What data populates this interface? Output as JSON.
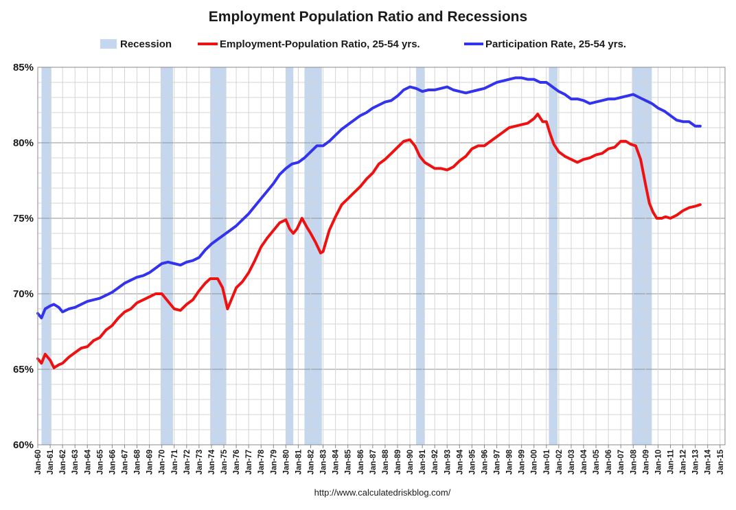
{
  "chart_data": {
    "type": "line",
    "title": "Employment Population Ratio and Recessions",
    "source": "http://www.calculatedriskblog.com/",
    "ylim": [
      60,
      85
    ],
    "yticks": [
      60,
      65,
      70,
      75,
      80,
      85
    ],
    "ytick_labels": [
      "60%",
      "65%",
      "70%",
      "75%",
      "80%",
      "85%"
    ],
    "xlim": [
      1960.0,
      2015.4
    ],
    "xtick_labels": [
      "Jan-60",
      "Jan-61",
      "Jan-62",
      "Jan-63",
      "Jan-64",
      "Jan-65",
      "Jan-66",
      "Jan-67",
      "Jan-68",
      "Jan-69",
      "Jan-70",
      "Jan-71",
      "Jan-72",
      "Jan-73",
      "Jan-74",
      "Jan-75",
      "Jan-76",
      "Jan-77",
      "Jan-78",
      "Jan-79",
      "Jan-80",
      "Jan-81",
      "Jan-82",
      "Jan-83",
      "Jan-84",
      "Jan-85",
      "Jan-86",
      "Jan-87",
      "Jan-88",
      "Jan-89",
      "Jan-90",
      "Jan-91",
      "Jan-92",
      "Jan-93",
      "Jan-94",
      "Jan-95",
      "Jan-96",
      "Jan-97",
      "Jan-98",
      "Jan-99",
      "Jan-00",
      "Jan-01",
      "Jan-02",
      "Jan-03",
      "Jan-04",
      "Jan-05",
      "Jan-06",
      "Jan-07",
      "Jan-08",
      "Jan-09",
      "Jan-10",
      "Jan-11",
      "Jan-12",
      "Jan-13",
      "Jan-14",
      "Jan-15"
    ],
    "grid": true,
    "legend_position": "top",
    "legend": [
      {
        "label": "Recession",
        "color": "#c5d7ef",
        "kind": "box"
      },
      {
        "label": "Employment-Population Ratio, 25-54 yrs.",
        "color": "#ee1111",
        "kind": "line"
      },
      {
        "label": "Participation Rate, 25-54 yrs.",
        "color": "#3333ee",
        "kind": "line"
      }
    ],
    "recessions": [
      [
        1960.3,
        1961.1
      ],
      [
        1969.9,
        1970.9
      ],
      [
        1973.9,
        1975.2
      ],
      [
        1980.0,
        1980.6
      ],
      [
        1981.5,
        1982.9
      ],
      [
        1990.5,
        1991.2
      ],
      [
        2001.2,
        2001.9
      ],
      [
        2007.9,
        2009.5
      ]
    ],
    "series": [
      {
        "name": "Employment-Population Ratio, 25-54 yrs.",
        "color": "#ee1111",
        "x": [
          1960.0,
          1960.3,
          1960.6,
          1961.0,
          1961.3,
          1961.7,
          1962.0,
          1962.5,
          1963.0,
          1963.5,
          1964.0,
          1964.5,
          1965.0,
          1965.5,
          1966.0,
          1966.5,
          1967.0,
          1967.5,
          1968.0,
          1968.5,
          1969.0,
          1969.5,
          1970.0,
          1970.5,
          1971.0,
          1971.5,
          1972.0,
          1972.5,
          1973.0,
          1973.5,
          1973.9,
          1974.5,
          1974.9,
          1975.3,
          1975.7,
          1976.0,
          1976.5,
          1977.0,
          1977.5,
          1978.0,
          1978.5,
          1979.0,
          1979.5,
          1980.0,
          1980.3,
          1980.6,
          1980.9,
          1981.3,
          1981.7,
          1982.0,
          1982.4,
          1982.8,
          1983.0,
          1983.5,
          1984.0,
          1984.5,
          1985.0,
          1985.5,
          1986.0,
          1986.5,
          1987.0,
          1987.5,
          1988.0,
          1988.5,
          1989.0,
          1989.5,
          1990.0,
          1990.4,
          1990.8,
          1991.2,
          1991.6,
          1992.0,
          1992.5,
          1993.0,
          1993.5,
          1994.0,
          1994.5,
          1995.0,
          1995.5,
          1996.0,
          1996.5,
          1997.0,
          1997.5,
          1998.0,
          1998.5,
          1999.0,
          1999.5,
          2000.0,
          2000.3,
          2000.7,
          2001.0,
          2001.3,
          2001.6,
          2002.0,
          2002.5,
          2003.0,
          2003.5,
          2004.0,
          2004.5,
          2005.0,
          2005.5,
          2006.0,
          2006.5,
          2007.0,
          2007.4,
          2007.8,
          2008.2,
          2008.6,
          2009.0,
          2009.3,
          2009.6,
          2009.9,
          2010.3,
          2010.6,
          2011.0,
          2011.5,
          2012.0,
          2012.5,
          2013.0,
          2013.4
        ],
        "y": [
          65.7,
          65.4,
          66.0,
          65.6,
          65.1,
          65.3,
          65.4,
          65.8,
          66.1,
          66.4,
          66.5,
          66.9,
          67.1,
          67.6,
          67.9,
          68.4,
          68.8,
          69.0,
          69.4,
          69.6,
          69.8,
          70.0,
          70.0,
          69.5,
          69.0,
          68.9,
          69.3,
          69.6,
          70.2,
          70.7,
          71.0,
          71.0,
          70.4,
          69.0,
          69.8,
          70.4,
          70.8,
          71.4,
          72.2,
          73.1,
          73.7,
          74.2,
          74.7,
          74.9,
          74.3,
          74.0,
          74.3,
          75.0,
          74.4,
          74.0,
          73.4,
          72.7,
          72.8,
          74.2,
          75.1,
          75.9,
          76.3,
          76.7,
          77.1,
          77.6,
          78.0,
          78.6,
          78.9,
          79.3,
          79.7,
          80.1,
          80.2,
          79.8,
          79.1,
          78.7,
          78.5,
          78.3,
          78.3,
          78.2,
          78.4,
          78.8,
          79.1,
          79.6,
          79.8,
          79.8,
          80.1,
          80.4,
          80.7,
          81.0,
          81.1,
          81.2,
          81.3,
          81.6,
          81.9,
          81.4,
          81.4,
          80.6,
          79.9,
          79.4,
          79.1,
          78.9,
          78.7,
          78.9,
          79.0,
          79.2,
          79.3,
          79.6,
          79.7,
          80.1,
          80.1,
          79.9,
          79.8,
          78.9,
          77.2,
          76.0,
          75.4,
          75.0,
          75.0,
          75.1,
          75.0,
          75.2,
          75.5,
          75.7,
          75.8,
          75.9
        ]
      },
      {
        "name": "Participation Rate, 25-54 yrs.",
        "color": "#3333ee",
        "x": [
          1960.0,
          1960.3,
          1960.6,
          1961.0,
          1961.3,
          1961.7,
          1962.0,
          1962.5,
          1963.0,
          1963.5,
          1964.0,
          1964.5,
          1965.0,
          1965.5,
          1966.0,
          1966.5,
          1967.0,
          1967.5,
          1968.0,
          1968.5,
          1969.0,
          1969.5,
          1970.0,
          1970.5,
          1971.0,
          1971.5,
          1972.0,
          1972.5,
          1973.0,
          1973.5,
          1974.0,
          1974.5,
          1975.0,
          1975.5,
          1976.0,
          1976.5,
          1977.0,
          1977.5,
          1978.0,
          1978.5,
          1979.0,
          1979.5,
          1980.0,
          1980.5,
          1981.0,
          1981.5,
          1982.0,
          1982.5,
          1983.0,
          1983.5,
          1984.0,
          1984.5,
          1985.0,
          1985.5,
          1986.0,
          1986.5,
          1987.0,
          1987.5,
          1988.0,
          1988.5,
          1989.0,
          1989.5,
          1990.0,
          1990.5,
          1991.0,
          1991.5,
          1992.0,
          1992.5,
          1993.0,
          1993.5,
          1994.0,
          1994.5,
          1995.0,
          1995.5,
          1996.0,
          1996.5,
          1997.0,
          1997.5,
          1998.0,
          1998.5,
          1999.0,
          1999.5,
          2000.0,
          2000.5,
          2001.0,
          2001.5,
          2002.0,
          2002.5,
          2003.0,
          2003.5,
          2004.0,
          2004.5,
          2005.0,
          2005.5,
          2006.0,
          2006.5,
          2007.0,
          2007.5,
          2008.0,
          2008.5,
          2009.0,
          2009.5,
          2010.0,
          2010.5,
          2011.0,
          2011.5,
          2012.0,
          2012.5,
          2013.0,
          2013.4
        ],
        "y": [
          68.7,
          68.4,
          69.0,
          69.2,
          69.3,
          69.1,
          68.8,
          69.0,
          69.1,
          69.3,
          69.5,
          69.6,
          69.7,
          69.9,
          70.1,
          70.4,
          70.7,
          70.9,
          71.1,
          71.2,
          71.4,
          71.7,
          72.0,
          72.1,
          72.0,
          71.9,
          72.1,
          72.2,
          72.4,
          72.9,
          73.3,
          73.6,
          73.9,
          74.2,
          74.5,
          74.9,
          75.3,
          75.8,
          76.3,
          76.8,
          77.3,
          77.9,
          78.3,
          78.6,
          78.7,
          79.0,
          79.4,
          79.8,
          79.8,
          80.1,
          80.5,
          80.9,
          81.2,
          81.5,
          81.8,
          82.0,
          82.3,
          82.5,
          82.7,
          82.8,
          83.1,
          83.5,
          83.7,
          83.6,
          83.4,
          83.5,
          83.5,
          83.6,
          83.7,
          83.5,
          83.4,
          83.3,
          83.4,
          83.5,
          83.6,
          83.8,
          84.0,
          84.1,
          84.2,
          84.3,
          84.3,
          84.2,
          84.2,
          84.0,
          84.0,
          83.7,
          83.4,
          83.2,
          82.9,
          82.9,
          82.8,
          82.6,
          82.7,
          82.8,
          82.9,
          82.9,
          83.0,
          83.1,
          83.2,
          83.0,
          82.8,
          82.6,
          82.3,
          82.1,
          81.8,
          81.5,
          81.4,
          81.4,
          81.1,
          81.1
        ]
      }
    ]
  }
}
